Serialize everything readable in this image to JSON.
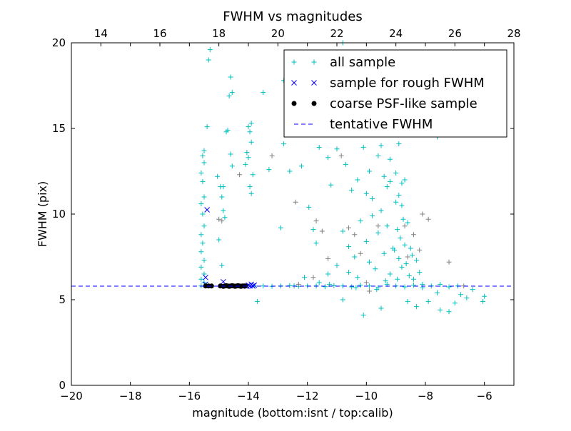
{
  "chart_data": {
    "type": "scatter",
    "title": "FWHM vs magnitudes",
    "xlabel": "magnitude (bottom:isnt / top:calib)",
    "ylabel": "FWHM (pix)",
    "xlim": [
      -20,
      -5
    ],
    "ylim": [
      0,
      20
    ],
    "top_xlim": [
      13,
      28
    ],
    "x_ticks": [
      -20,
      -18,
      -16,
      -14,
      -12,
      -10,
      -8,
      -6
    ],
    "x_tick_labels": [
      "−20",
      "−18",
      "−16",
      "−14",
      "−12",
      "−10",
      "−8",
      "−6"
    ],
    "top_x_ticks": [
      14,
      16,
      18,
      20,
      22,
      24,
      26,
      28
    ],
    "top_x_tick_labels": [
      "14",
      "16",
      "18",
      "20",
      "22",
      "24",
      "26",
      "28"
    ],
    "y_ticks": [
      0,
      5,
      10,
      15,
      20
    ],
    "y_tick_labels": [
      "0",
      "5",
      "10",
      "15",
      "20"
    ],
    "grid": false,
    "legend_position": "top-right",
    "tentative_fwhm": 5.79,
    "series": [
      {
        "name": "all sample",
        "marker": "+",
        "color": "#00bfbf",
        "points": [
          [
            -15.6,
            5.8
          ],
          [
            -15.5,
            6.0
          ],
          [
            -15.6,
            6.2
          ],
          [
            -15.5,
            6.5
          ],
          [
            -15.6,
            6.9
          ],
          [
            -15.5,
            7.3
          ],
          [
            -15.6,
            7.8
          ],
          [
            -15.55,
            8.3
          ],
          [
            -15.6,
            8.8
          ],
          [
            -15.5,
            9.3
          ],
          [
            -15.55,
            10.0
          ],
          [
            -15.6,
            10.6
          ],
          [
            -15.5,
            11.0
          ],
          [
            -15.55,
            11.9
          ],
          [
            -15.6,
            12.4
          ],
          [
            -15.5,
            13.0
          ],
          [
            -15.55,
            13.4
          ],
          [
            -15.5,
            13.7
          ],
          [
            -15.05,
            12.2
          ],
          [
            -14.95,
            11.6
          ],
          [
            -14.9,
            11.0
          ],
          [
            -14.85,
            10.2
          ],
          [
            -14.8,
            9.8
          ],
          [
            -15.0,
            8.5
          ],
          [
            -14.9,
            7.0
          ],
          [
            -14.85,
            11.6
          ],
          [
            -14.6,
            18.0
          ],
          [
            -14.65,
            16.9
          ],
          [
            -14.55,
            17.1
          ],
          [
            -14.7,
            14.9
          ],
          [
            -14.75,
            14.8
          ],
          [
            -14.6,
            13.5
          ],
          [
            -14.55,
            12.8
          ],
          [
            -15.3,
            19.6
          ],
          [
            -15.35,
            19.0
          ],
          [
            -15.4,
            15.1
          ],
          [
            -14.0,
            15.1
          ],
          [
            -13.9,
            15.3
          ],
          [
            -13.95,
            14.8
          ],
          [
            -13.9,
            14.2
          ],
          [
            -14.0,
            13.3
          ],
          [
            -14.1,
            12.9
          ],
          [
            -13.85,
            12.3
          ],
          [
            -13.95,
            11.6
          ],
          [
            -13.9,
            11.2
          ],
          [
            -14.05,
            13.6
          ],
          [
            -13.5,
            17.1
          ],
          [
            -12.8,
            17.8
          ],
          [
            -13.3,
            12.6
          ],
          [
            -12.6,
            12.5
          ],
          [
            -12.9,
            9.2
          ],
          [
            -12.8,
            14.1
          ],
          [
            -12.2,
            12.8
          ],
          [
            -11.95,
            10.4
          ],
          [
            -11.8,
            9.1
          ],
          [
            -11.7,
            8.3
          ],
          [
            -11.6,
            13.9
          ],
          [
            -11.3,
            13.3
          ],
          [
            -11.2,
            11.7
          ],
          [
            -11.0,
            13.8
          ],
          [
            -10.8,
            20.0
          ],
          [
            -10.7,
            12.9
          ],
          [
            -10.5,
            11.4
          ],
          [
            -10.3,
            12.0
          ],
          [
            -10.1,
            13.9
          ],
          [
            -10.0,
            11.2
          ],
          [
            -9.9,
            12.5
          ],
          [
            -9.8,
            10.9
          ],
          [
            -9.6,
            13.4
          ],
          [
            -9.5,
            14.0
          ],
          [
            -9.4,
            12.2
          ],
          [
            -9.3,
            11.6
          ],
          [
            -9.2,
            13.2
          ],
          [
            -9.0,
            12.4
          ],
          [
            -8.9,
            11.1
          ],
          [
            -8.8,
            10.5
          ],
          [
            -8.7,
            12.0
          ],
          [
            -10.8,
            9.0
          ],
          [
            -10.6,
            8.1
          ],
          [
            -10.4,
            7.5
          ],
          [
            -10.2,
            9.6
          ],
          [
            -10.0,
            8.4
          ],
          [
            -9.9,
            7.2
          ],
          [
            -9.8,
            9.9
          ],
          [
            -9.7,
            6.8
          ],
          [
            -9.6,
            8.9
          ],
          [
            -9.5,
            10.2
          ],
          [
            -9.4,
            7.7
          ],
          [
            -9.3,
            9.3
          ],
          [
            -9.2,
            6.5
          ],
          [
            -9.1,
            8.0
          ],
          [
            -9.0,
            10.7
          ],
          [
            -8.95,
            9.1
          ],
          [
            -8.9,
            7.4
          ],
          [
            -8.85,
            8.6
          ],
          [
            -8.8,
            6.9
          ],
          [
            -8.75,
            9.7
          ],
          [
            -8.7,
            8.2
          ],
          [
            -8.65,
            7.1
          ],
          [
            -8.6,
            9.5
          ],
          [
            -8.55,
            6.4
          ],
          [
            -8.5,
            8.0
          ],
          [
            -8.45,
            7.6
          ],
          [
            -8.4,
            6.2
          ],
          [
            -8.3,
            7.3
          ],
          [
            -8.2,
            6.6
          ],
          [
            -8.1,
            5.9
          ],
          [
            -9.05,
            7.9
          ],
          [
            -8.95,
            6.2
          ],
          [
            -9.35,
            6.1
          ],
          [
            -9.65,
            5.6
          ],
          [
            -10.3,
            6.3
          ],
          [
            -10.6,
            6.6
          ],
          [
            -11.0,
            7.0
          ],
          [
            -11.3,
            6.5
          ],
          [
            -11.6,
            6.0
          ],
          [
            -12.1,
            6.3
          ],
          [
            -10.1,
            4.1
          ],
          [
            -9.5,
            4.5
          ],
          [
            -8.6,
            4.9
          ],
          [
            -8.3,
            4.6
          ],
          [
            -7.9,
            4.9
          ],
          [
            -7.5,
            4.4
          ],
          [
            -7.2,
            4.3
          ],
          [
            -7.0,
            4.8
          ],
          [
            -6.6,
            5.1
          ],
          [
            -6.05,
            4.9
          ],
          [
            -6.0,
            5.2
          ],
          [
            -6.4,
            5.6
          ],
          [
            -6.8,
            5.3
          ],
          [
            -7.6,
            5.4
          ],
          [
            -10.8,
            5.0
          ],
          [
            -13.7,
            4.9
          ],
          [
            -8.8,
            11.8
          ],
          [
            -9.2,
            11.9
          ],
          [
            -8.9,
            14.1
          ],
          [
            -7.6,
            14.5
          ],
          [
            -13.8,
            5.8
          ],
          [
            -13.5,
            5.8
          ],
          [
            -13.2,
            5.78
          ],
          [
            -12.9,
            5.8
          ],
          [
            -12.6,
            5.82
          ],
          [
            -12.3,
            5.78
          ],
          [
            -12.0,
            5.8
          ],
          [
            -11.7,
            5.8
          ],
          [
            -11.4,
            5.76
          ],
          [
            -11.1,
            5.82
          ],
          [
            -10.8,
            5.8
          ],
          [
            -10.5,
            5.75
          ],
          [
            -10.2,
            5.85
          ],
          [
            -9.9,
            5.8
          ],
          [
            -9.6,
            5.7
          ],
          [
            -9.3,
            5.9
          ],
          [
            -9.0,
            5.8
          ],
          [
            -8.7,
            5.75
          ],
          [
            -8.4,
            5.85
          ],
          [
            -8.1,
            5.7
          ],
          [
            -7.8,
            5.8
          ],
          [
            -7.5,
            5.9
          ],
          [
            -7.2,
            5.75
          ],
          [
            -6.9,
            5.8
          ],
          [
            -12.45,
            5.8
          ],
          [
            -11.25,
            5.9
          ],
          [
            -10.35,
            5.7
          ]
        ]
      },
      {
        "name": "",
        "marker": "+",
        "color": "#808080",
        "points": [
          [
            -15.0,
            9.7
          ],
          [
            -14.9,
            9.6
          ],
          [
            -14.3,
            12.3
          ],
          [
            -12.4,
            10.7
          ],
          [
            -11.7,
            9.6
          ],
          [
            -11.5,
            9.0
          ],
          [
            -11.3,
            7.4
          ],
          [
            -10.6,
            9.2
          ],
          [
            -10.4,
            8.8
          ],
          [
            -10.2,
            7.7
          ],
          [
            -9.6,
            9.3
          ],
          [
            -8.7,
            9.3
          ],
          [
            -8.1,
            10.0
          ],
          [
            -7.9,
            9.7
          ],
          [
            -8.4,
            8.8
          ],
          [
            -8.6,
            7.5
          ],
          [
            -7.2,
            7.2
          ],
          [
            -6.7,
            5.8
          ],
          [
            -11.8,
            6.3
          ],
          [
            -10.0,
            6.0
          ],
          [
            -12.3,
            5.9
          ],
          [
            -10.85,
            13.4
          ],
          [
            -9.9,
            5.5
          ],
          [
            -8.2,
            7.9
          ],
          [
            -13.2,
            13.4
          ]
        ]
      },
      {
        "name": "sample for rough FWHM",
        "marker": "x",
        "color": "#0000ff",
        "points": [
          [
            -15.4,
            10.25
          ],
          [
            -15.45,
            6.3
          ],
          [
            -15.45,
            5.9
          ],
          [
            -14.85,
            6.05
          ],
          [
            -14.0,
            5.85
          ],
          [
            -13.95,
            5.8
          ],
          [
            -13.9,
            5.9
          ],
          [
            -13.85,
            5.8
          ],
          [
            -13.8,
            5.85
          ],
          [
            -14.05,
            5.78
          ]
        ]
      },
      {
        "name": "coarse PSF-like sample",
        "marker": "o",
        "color": "#000000",
        "points": [
          [
            -15.45,
            5.8
          ],
          [
            -15.35,
            5.8
          ],
          [
            -15.25,
            5.8
          ],
          [
            -14.95,
            5.8
          ],
          [
            -14.85,
            5.78
          ],
          [
            -14.8,
            5.8
          ],
          [
            -14.75,
            5.82
          ],
          [
            -14.7,
            5.8
          ],
          [
            -14.65,
            5.78
          ],
          [
            -14.6,
            5.8
          ],
          [
            -14.55,
            5.82
          ],
          [
            -14.5,
            5.8
          ],
          [
            -14.45,
            5.78
          ],
          [
            -14.4,
            5.8
          ],
          [
            -14.35,
            5.82
          ],
          [
            -14.3,
            5.8
          ],
          [
            -14.25,
            5.78
          ],
          [
            -14.2,
            5.8
          ],
          [
            -14.15,
            5.8
          ],
          [
            -14.1,
            5.8
          ]
        ]
      }
    ],
    "legend": [
      {
        "label": "all sample",
        "marker": "+",
        "color": "#00bfbf"
      },
      {
        "label": "sample for rough FWHM",
        "marker": "x",
        "color": "#0000ff"
      },
      {
        "label": "coarse PSF-like sample",
        "marker": "o",
        "color": "#000000"
      },
      {
        "label": "tentative FWHM",
        "marker": "--",
        "color": "#0000ff"
      }
    ]
  }
}
